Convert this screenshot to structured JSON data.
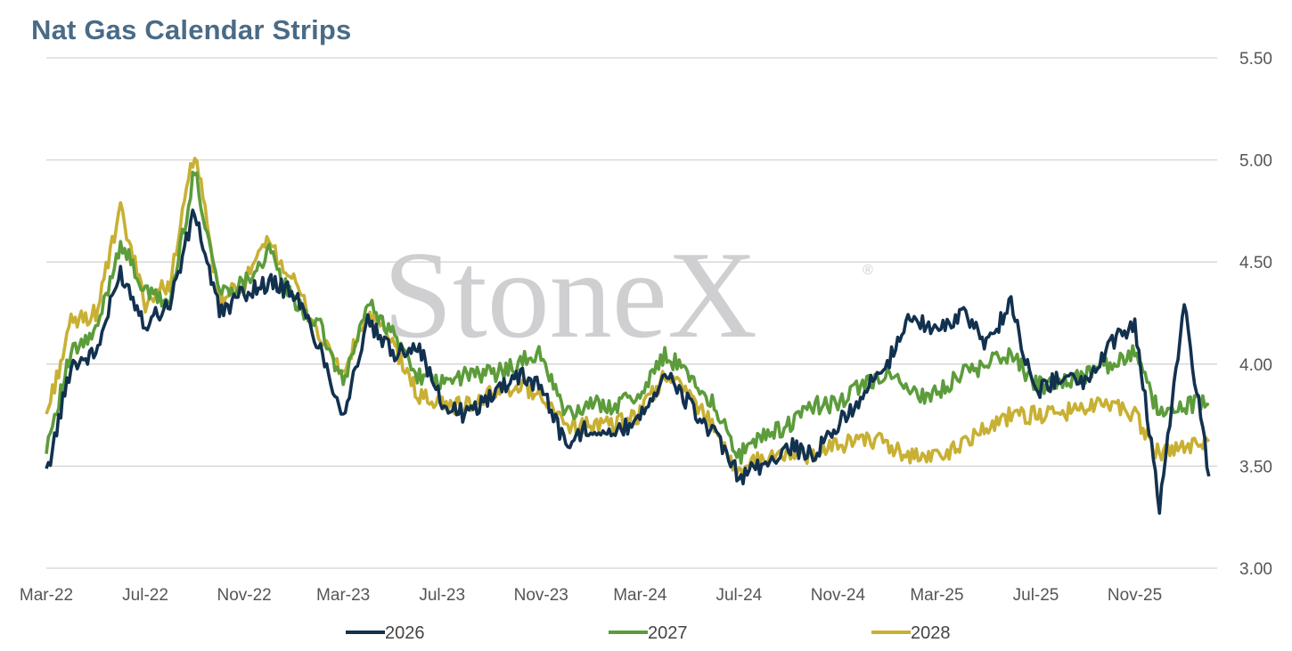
{
  "header": {
    "title": "Nat Gas Calendar Strips"
  },
  "watermark": {
    "text": "StoneX",
    "mark": "®"
  },
  "chart_data": {
    "type": "line",
    "title": "Nat Gas Calendar Strips",
    "xlabel": "",
    "ylabel": "",
    "ylim": [
      3.0,
      5.5
    ],
    "y_ticks": [
      "3.00",
      "3.50",
      "4.00",
      "4.50",
      "5.00",
      "5.50"
    ],
    "x_ticks": [
      "Mar-22",
      "Jul-22",
      "Nov-22",
      "Mar-23",
      "Jul-23",
      "Nov-23",
      "Mar-24",
      "Jul-24",
      "Nov-24",
      "Mar-25",
      "Jul-25",
      "Nov-25"
    ],
    "x_month_index_note_free": true,
    "x": [
      "Mar-22",
      "Apr-22",
      "May-22",
      "Jun-22",
      "Jul-22",
      "Aug-22",
      "Sep-22",
      "Oct-22",
      "Nov-22",
      "Dec-22",
      "Jan-23",
      "Feb-23",
      "Mar-23",
      "Apr-23",
      "May-23",
      "Jun-23",
      "Jul-23",
      "Aug-23",
      "Sep-23",
      "Oct-23",
      "Nov-23",
      "Dec-23",
      "Jan-24",
      "Feb-24",
      "Mar-24",
      "Apr-24",
      "May-24",
      "Jun-24",
      "Jul-24",
      "Aug-24",
      "Sep-24",
      "Oct-24",
      "Nov-24",
      "Dec-24",
      "Jan-25",
      "Feb-25",
      "Mar-25",
      "Apr-25",
      "May-25",
      "Jun-25",
      "Jul-25",
      "Aug-25",
      "Sep-25",
      "Oct-25",
      "Nov-25",
      "Dec-25",
      "Jan-26",
      "Feb-26"
    ],
    "grid": true,
    "legend_position": "bottom",
    "series": [
      {
        "name": "2026",
        "color": "#12314f",
        "values": [
          3.45,
          4.0,
          4.05,
          4.45,
          4.2,
          4.3,
          4.75,
          4.25,
          4.35,
          4.4,
          4.35,
          4.1,
          3.75,
          4.2,
          4.05,
          4.1,
          3.8,
          3.75,
          3.85,
          3.95,
          3.9,
          3.6,
          3.7,
          3.65,
          3.75,
          3.95,
          3.8,
          3.65,
          3.45,
          3.5,
          3.6,
          3.55,
          3.7,
          3.85,
          4.0,
          4.25,
          4.15,
          4.25,
          4.1,
          4.3,
          3.85,
          3.95,
          3.9,
          4.1,
          4.2,
          3.3,
          4.3,
          3.45
        ]
      },
      {
        "name": "2027",
        "color": "#5c9c3b",
        "values": [
          3.6,
          4.05,
          4.15,
          4.6,
          4.35,
          4.3,
          4.95,
          4.35,
          4.4,
          4.55,
          4.3,
          4.2,
          3.9,
          4.3,
          4.15,
          3.95,
          3.9,
          3.95,
          3.95,
          4.0,
          4.05,
          3.75,
          3.8,
          3.8,
          3.85,
          4.05,
          3.95,
          3.8,
          3.55,
          3.65,
          3.7,
          3.8,
          3.8,
          3.9,
          3.95,
          3.85,
          3.85,
          3.95,
          4.0,
          4.05,
          3.9,
          3.9,
          3.95,
          4.0,
          4.05,
          3.75,
          3.8,
          3.8
        ]
      },
      {
        "name": "2028",
        "color": "#c8b033",
        "values": [
          3.75,
          4.2,
          4.25,
          4.75,
          4.3,
          4.4,
          5.05,
          4.3,
          4.4,
          4.6,
          4.4,
          4.15,
          3.95,
          4.25,
          4.1,
          3.85,
          3.8,
          3.8,
          3.85,
          3.9,
          3.85,
          3.7,
          3.7,
          3.7,
          3.75,
          3.95,
          3.85,
          3.7,
          3.45,
          3.55,
          3.55,
          3.55,
          3.6,
          3.65,
          3.6,
          3.55,
          3.55,
          3.6,
          3.7,
          3.75,
          3.75,
          3.75,
          3.8,
          3.8,
          3.75,
          3.55,
          3.6,
          3.62
        ]
      }
    ]
  }
}
